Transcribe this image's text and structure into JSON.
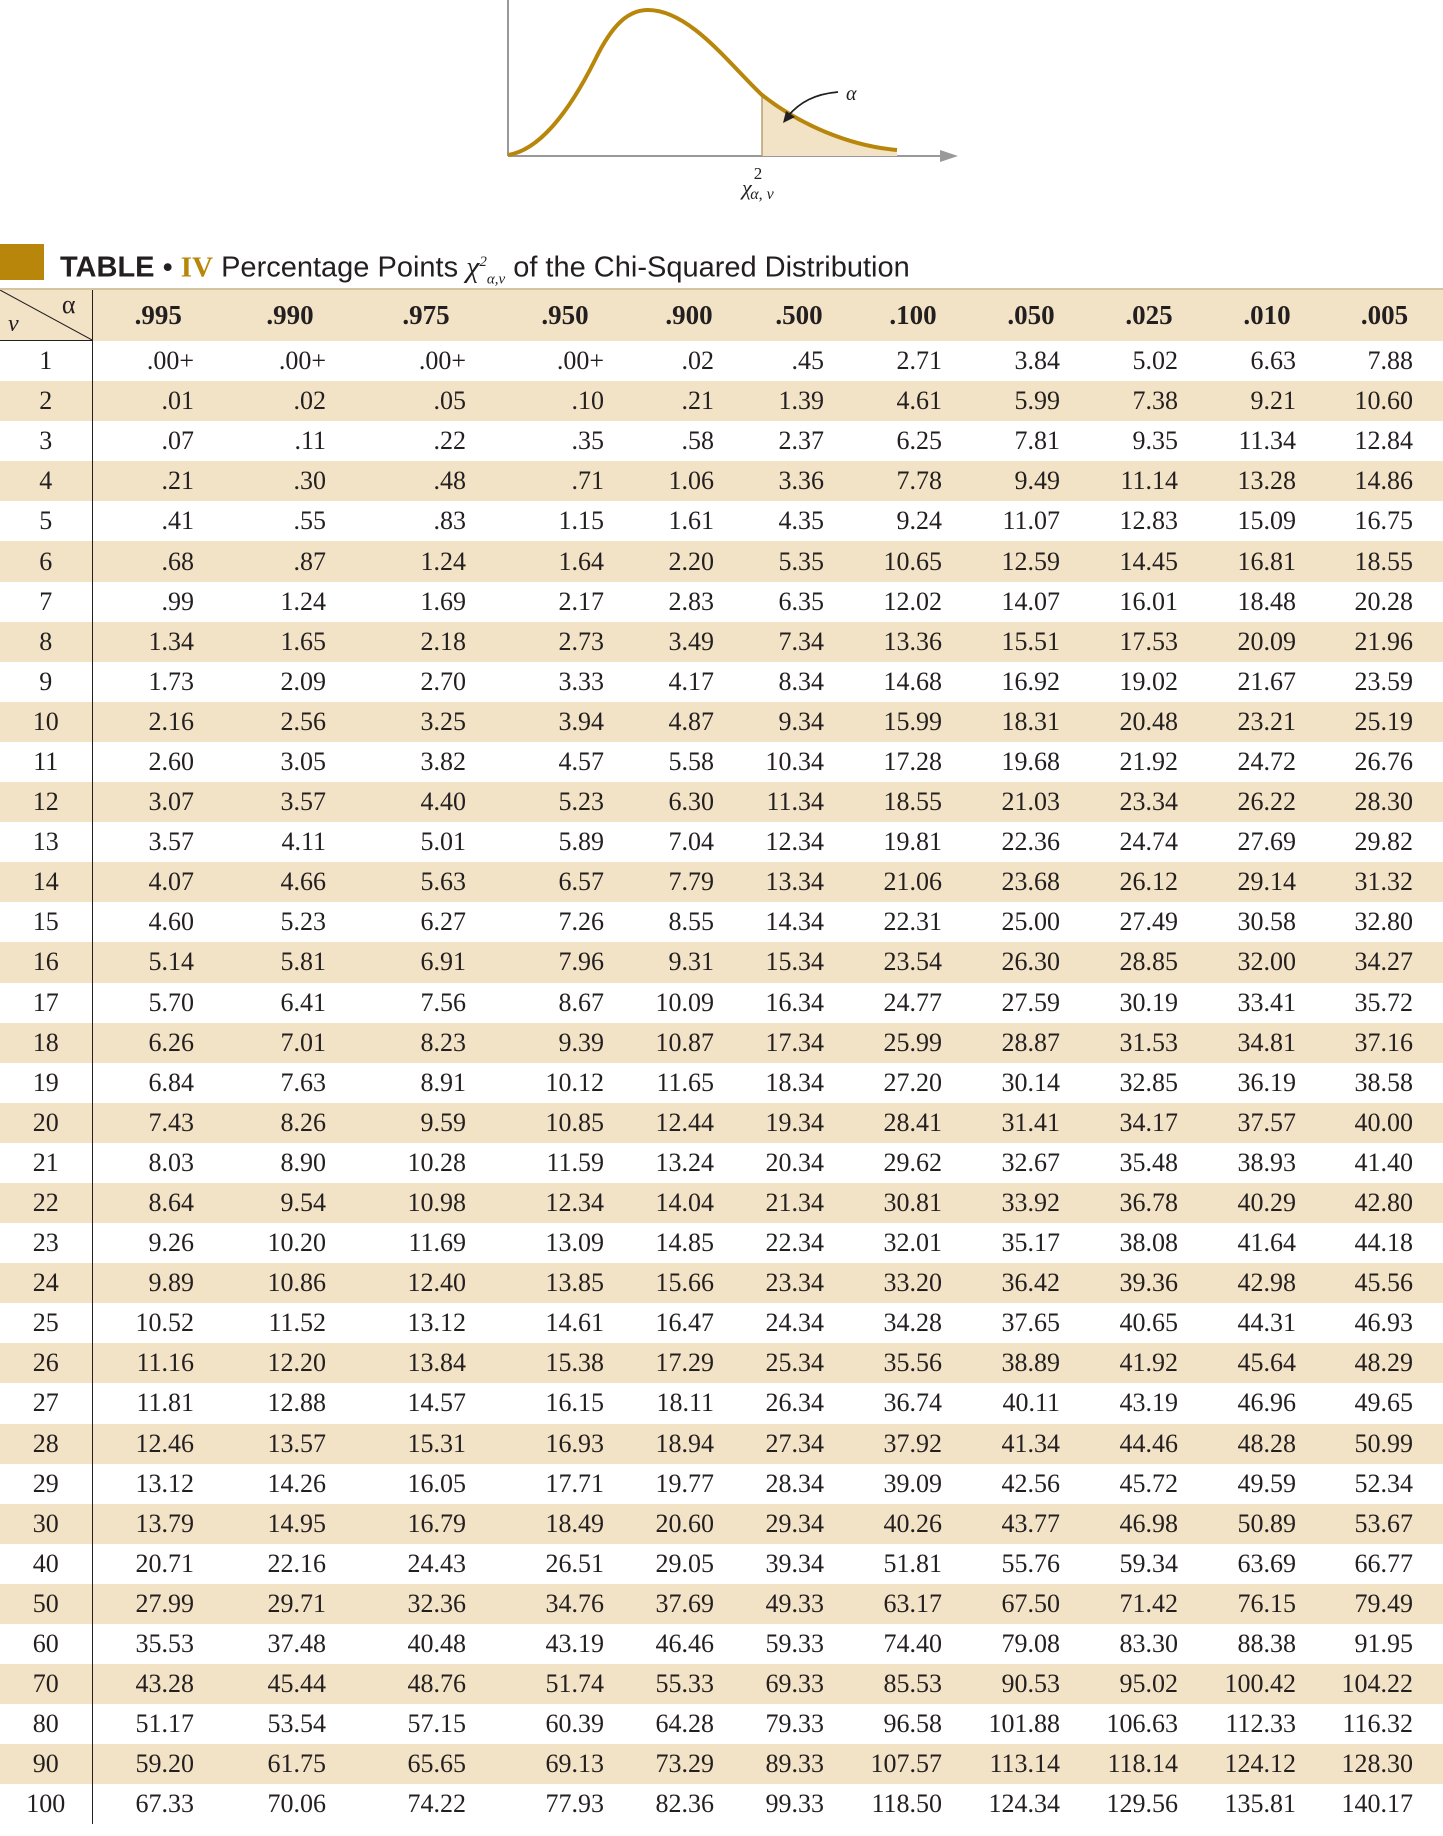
{
  "figure": {
    "alpha_label": "α",
    "x_label": "χ",
    "x_label_sup": "2",
    "x_label_sub": "α, ν"
  },
  "title": {
    "table_word": "TABLE",
    "bullet": "•",
    "number": "IV",
    "text_before": "Percentage Points",
    "chi_symbol": "χ",
    "chi_sup": "2",
    "chi_sub": "α,ν",
    "text_after": "of the Chi-Squared Distribution"
  },
  "colors": {
    "accent": "#b8860b",
    "row_shade": "#f3e3c6",
    "curve": "#b8860b",
    "tail_fill": "#f3e3c6"
  },
  "table": {
    "corner_alpha": "α",
    "corner_nu": "ν",
    "columns": [
      ".995",
      ".990",
      ".975",
      ".950",
      ".900",
      ".500",
      ".100",
      ".050",
      ".025",
      ".010",
      ".005"
    ],
    "rows": [
      {
        "nu": "1",
        "values": [
          ".00+",
          ".00+",
          ".00+",
          ".00+",
          ".02",
          ".45",
          "2.71",
          "3.84",
          "5.02",
          "6.63",
          "7.88"
        ]
      },
      {
        "nu": "2",
        "values": [
          ".01",
          ".02",
          ".05",
          ".10",
          ".21",
          "1.39",
          "4.61",
          "5.99",
          "7.38",
          "9.21",
          "10.60"
        ]
      },
      {
        "nu": "3",
        "values": [
          ".07",
          ".11",
          ".22",
          ".35",
          ".58",
          "2.37",
          "6.25",
          "7.81",
          "9.35",
          "11.34",
          "12.84"
        ]
      },
      {
        "nu": "4",
        "values": [
          ".21",
          ".30",
          ".48",
          ".71",
          "1.06",
          "3.36",
          "7.78",
          "9.49",
          "11.14",
          "13.28",
          "14.86"
        ]
      },
      {
        "nu": "5",
        "values": [
          ".41",
          ".55",
          ".83",
          "1.15",
          "1.61",
          "4.35",
          "9.24",
          "11.07",
          "12.83",
          "15.09",
          "16.75"
        ]
      },
      {
        "nu": "6",
        "values": [
          ".68",
          ".87",
          "1.24",
          "1.64",
          "2.20",
          "5.35",
          "10.65",
          "12.59",
          "14.45",
          "16.81",
          "18.55"
        ]
      },
      {
        "nu": "7",
        "values": [
          ".99",
          "1.24",
          "1.69",
          "2.17",
          "2.83",
          "6.35",
          "12.02",
          "14.07",
          "16.01",
          "18.48",
          "20.28"
        ]
      },
      {
        "nu": "8",
        "values": [
          "1.34",
          "1.65",
          "2.18",
          "2.73",
          "3.49",
          "7.34",
          "13.36",
          "15.51",
          "17.53",
          "20.09",
          "21.96"
        ]
      },
      {
        "nu": "9",
        "values": [
          "1.73",
          "2.09",
          "2.70",
          "3.33",
          "4.17",
          "8.34",
          "14.68",
          "16.92",
          "19.02",
          "21.67",
          "23.59"
        ]
      },
      {
        "nu": "10",
        "values": [
          "2.16",
          "2.56",
          "3.25",
          "3.94",
          "4.87",
          "9.34",
          "15.99",
          "18.31",
          "20.48",
          "23.21",
          "25.19"
        ]
      },
      {
        "nu": "11",
        "values": [
          "2.60",
          "3.05",
          "3.82",
          "4.57",
          "5.58",
          "10.34",
          "17.28",
          "19.68",
          "21.92",
          "24.72",
          "26.76"
        ]
      },
      {
        "nu": "12",
        "values": [
          "3.07",
          "3.57",
          "4.40",
          "5.23",
          "6.30",
          "11.34",
          "18.55",
          "21.03",
          "23.34",
          "26.22",
          "28.30"
        ]
      },
      {
        "nu": "13",
        "values": [
          "3.57",
          "4.11",
          "5.01",
          "5.89",
          "7.04",
          "12.34",
          "19.81",
          "22.36",
          "24.74",
          "27.69",
          "29.82"
        ]
      },
      {
        "nu": "14",
        "values": [
          "4.07",
          "4.66",
          "5.63",
          "6.57",
          "7.79",
          "13.34",
          "21.06",
          "23.68",
          "26.12",
          "29.14",
          "31.32"
        ]
      },
      {
        "nu": "15",
        "values": [
          "4.60",
          "5.23",
          "6.27",
          "7.26",
          "8.55",
          "14.34",
          "22.31",
          "25.00",
          "27.49",
          "30.58",
          "32.80"
        ]
      },
      {
        "nu": "16",
        "values": [
          "5.14",
          "5.81",
          "6.91",
          "7.96",
          "9.31",
          "15.34",
          "23.54",
          "26.30",
          "28.85",
          "32.00",
          "34.27"
        ]
      },
      {
        "nu": "17",
        "values": [
          "5.70",
          "6.41",
          "7.56",
          "8.67",
          "10.09",
          "16.34",
          "24.77",
          "27.59",
          "30.19",
          "33.41",
          "35.72"
        ]
      },
      {
        "nu": "18",
        "values": [
          "6.26",
          "7.01",
          "8.23",
          "9.39",
          "10.87",
          "17.34",
          "25.99",
          "28.87",
          "31.53",
          "34.81",
          "37.16"
        ]
      },
      {
        "nu": "19",
        "values": [
          "6.84",
          "7.63",
          "8.91",
          "10.12",
          "11.65",
          "18.34",
          "27.20",
          "30.14",
          "32.85",
          "36.19",
          "38.58"
        ]
      },
      {
        "nu": "20",
        "values": [
          "7.43",
          "8.26",
          "9.59",
          "10.85",
          "12.44",
          "19.34",
          "28.41",
          "31.41",
          "34.17",
          "37.57",
          "40.00"
        ]
      },
      {
        "nu": "21",
        "values": [
          "8.03",
          "8.90",
          "10.28",
          "11.59",
          "13.24",
          "20.34",
          "29.62",
          "32.67",
          "35.48",
          "38.93",
          "41.40"
        ]
      },
      {
        "nu": "22",
        "values": [
          "8.64",
          "9.54",
          "10.98",
          "12.34",
          "14.04",
          "21.34",
          "30.81",
          "33.92",
          "36.78",
          "40.29",
          "42.80"
        ]
      },
      {
        "nu": "23",
        "values": [
          "9.26",
          "10.20",
          "11.69",
          "13.09",
          "14.85",
          "22.34",
          "32.01",
          "35.17",
          "38.08",
          "41.64",
          "44.18"
        ]
      },
      {
        "nu": "24",
        "values": [
          "9.89",
          "10.86",
          "12.40",
          "13.85",
          "15.66",
          "23.34",
          "33.20",
          "36.42",
          "39.36",
          "42.98",
          "45.56"
        ]
      },
      {
        "nu": "25",
        "values": [
          "10.52",
          "11.52",
          "13.12",
          "14.61",
          "16.47",
          "24.34",
          "34.28",
          "37.65",
          "40.65",
          "44.31",
          "46.93"
        ]
      },
      {
        "nu": "26",
        "values": [
          "11.16",
          "12.20",
          "13.84",
          "15.38",
          "17.29",
          "25.34",
          "35.56",
          "38.89",
          "41.92",
          "45.64",
          "48.29"
        ]
      },
      {
        "nu": "27",
        "values": [
          "11.81",
          "12.88",
          "14.57",
          "16.15",
          "18.11",
          "26.34",
          "36.74",
          "40.11",
          "43.19",
          "46.96",
          "49.65"
        ]
      },
      {
        "nu": "28",
        "values": [
          "12.46",
          "13.57",
          "15.31",
          "16.93",
          "18.94",
          "27.34",
          "37.92",
          "41.34",
          "44.46",
          "48.28",
          "50.99"
        ]
      },
      {
        "nu": "29",
        "values": [
          "13.12",
          "14.26",
          "16.05",
          "17.71",
          "19.77",
          "28.34",
          "39.09",
          "42.56",
          "45.72",
          "49.59",
          "52.34"
        ]
      },
      {
        "nu": "30",
        "values": [
          "13.79",
          "14.95",
          "16.79",
          "18.49",
          "20.60",
          "29.34",
          "40.26",
          "43.77",
          "46.98",
          "50.89",
          "53.67"
        ]
      },
      {
        "nu": "40",
        "values": [
          "20.71",
          "22.16",
          "24.43",
          "26.51",
          "29.05",
          "39.34",
          "51.81",
          "55.76",
          "59.34",
          "63.69",
          "66.77"
        ]
      },
      {
        "nu": "50",
        "values": [
          "27.99",
          "29.71",
          "32.36",
          "34.76",
          "37.69",
          "49.33",
          "63.17",
          "67.50",
          "71.42",
          "76.15",
          "79.49"
        ]
      },
      {
        "nu": "60",
        "values": [
          "35.53",
          "37.48",
          "40.48",
          "43.19",
          "46.46",
          "59.33",
          "74.40",
          "79.08",
          "83.30",
          "88.38",
          "91.95"
        ]
      },
      {
        "nu": "70",
        "values": [
          "43.28",
          "45.44",
          "48.76",
          "51.74",
          "55.33",
          "69.33",
          "85.53",
          "90.53",
          "95.02",
          "100.42",
          "104.22"
        ]
      },
      {
        "nu": "80",
        "values": [
          "51.17",
          "53.54",
          "57.15",
          "60.39",
          "64.28",
          "79.33",
          "96.58",
          "101.88",
          "106.63",
          "112.33",
          "116.32"
        ]
      },
      {
        "nu": "90",
        "values": [
          "59.20",
          "61.75",
          "65.65",
          "69.13",
          "73.29",
          "89.33",
          "107.57",
          "113.14",
          "118.14",
          "124.12",
          "128.30"
        ]
      },
      {
        "nu": "100",
        "values": [
          "67.33",
          "70.06",
          "74.22",
          "77.93",
          "82.36",
          "99.33",
          "118.50",
          "124.34",
          "129.56",
          "135.81",
          "140.17"
        ]
      }
    ]
  }
}
